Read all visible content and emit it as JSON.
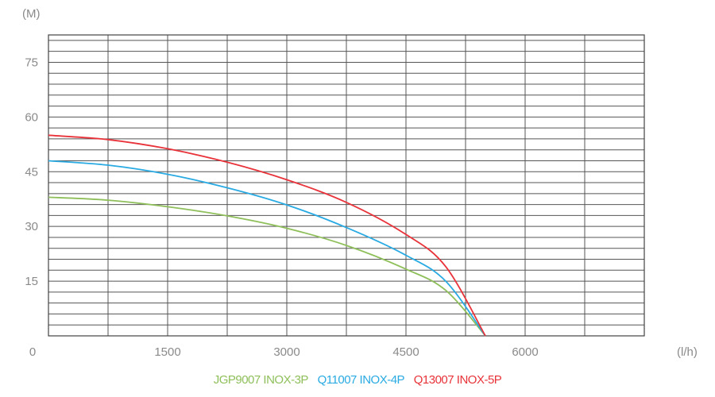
{
  "chart_data": {
    "type": "line",
    "y_unit": "(M)",
    "x_unit": "(l/h)",
    "xlim": [
      0,
      7500
    ],
    "ylim": [
      0,
      82.5
    ],
    "x_ticks": [
      0,
      1500,
      3000,
      4500,
      6000
    ],
    "x_tick_labels": [
      "0",
      "1500",
      "3000",
      "4500",
      "6000"
    ],
    "y_ticks": [
      15,
      30,
      45,
      60,
      75
    ],
    "y_tick_labels": [
      "15",
      "30",
      "45",
      "60",
      "75"
    ],
    "grid": true,
    "legend_position": "bottom",
    "series": [
      {
        "name": "JGP9007 INOX-3P",
        "color": "#8fbf5a",
        "x": [
          0,
          750,
          1500,
          2250,
          3000,
          3750,
          4500,
          5000,
          5500
        ],
        "y": [
          38,
          37.2,
          35.4,
          32.9,
          29.5,
          24.8,
          18.3,
          12.5,
          0
        ]
      },
      {
        "name": "Q11007 INOX-4P",
        "color": "#29aae2",
        "x": [
          0,
          750,
          1500,
          2250,
          3000,
          3750,
          4500,
          5000,
          5500
        ],
        "y": [
          48,
          46.8,
          44.3,
          40.6,
          35.9,
          29.7,
          22.1,
          15,
          0
        ]
      },
      {
        "name": "Q13007 INOX-5P",
        "color": "#e8333a",
        "x": [
          0,
          750,
          1500,
          2250,
          3000,
          3750,
          4500,
          5000,
          5500
        ],
        "y": [
          55,
          53.8,
          51.3,
          47.6,
          42.8,
          36.6,
          27.8,
          19,
          0
        ]
      }
    ]
  }
}
